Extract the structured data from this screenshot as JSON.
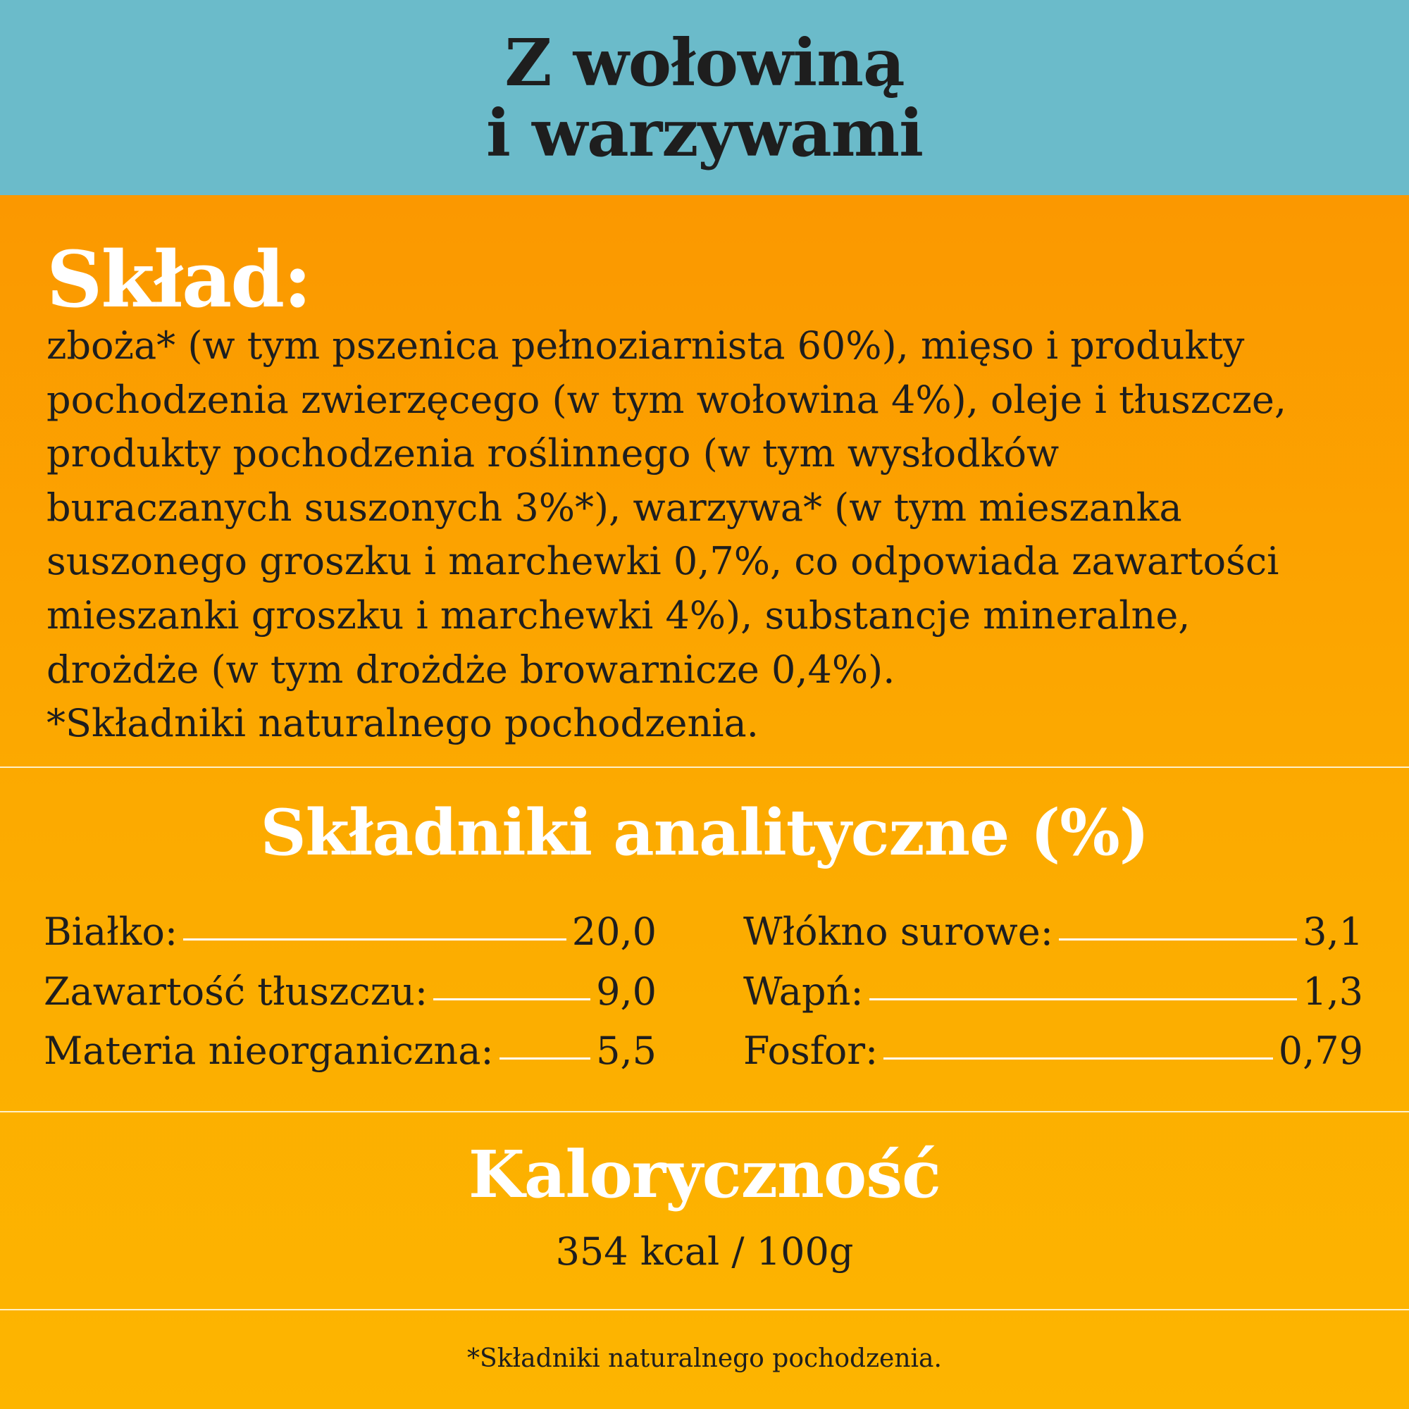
{
  "header": {
    "title_line1": "Z wołowiną",
    "title_line2": "i warzywami"
  },
  "composition": {
    "title": "Skład:",
    "lines": [
      "zboża* (w tym pszenica pełnoziarnista 60%), mięso i produkty",
      "pochodzenia zwierzęcego (w tym wołowina 4%), oleje i tłuszcze,",
      "produkty pochodzenia roślinnego (w tym wysłodków",
      "buraczanych suszonych 3%*), warzywa* (w tym mieszanka",
      "suszonego groszku i marchewki 0,7%, co odpowiada zawartości",
      "mieszanki groszku i marchewki 4%), substancje mineralne,",
      "drożdże (w tym drożdże browarnicze 0,4%).",
      "*Składniki naturalnego pochodzenia."
    ]
  },
  "analytical": {
    "title": "Składniki analityczne (%)",
    "left": [
      {
        "label": "Białko:",
        "value": "20,0"
      },
      {
        "label": "Zawartość tłuszczu:",
        "value": "9,0"
      },
      {
        "label": "Materia nieorganiczna:",
        "value": "5,5"
      }
    ],
    "right": [
      {
        "label": "Włókno surowe:",
        "value": "3,1"
      },
      {
        "label": "Wapń:",
        "value": "1,3"
      },
      {
        "label": "Fosfor:",
        "value": "0,79"
      }
    ]
  },
  "energy": {
    "title": "Kaloryczność",
    "value": "354 kcal / 100g"
  },
  "footnote": "*Składniki naturalnego pochodzenia.",
  "colors": {
    "header_bg": "#6bbbca",
    "body_top": "#fb9800",
    "body_bottom": "#fdb500",
    "text_dark": "#1e1e1e",
    "text_light": "#ffffff"
  }
}
